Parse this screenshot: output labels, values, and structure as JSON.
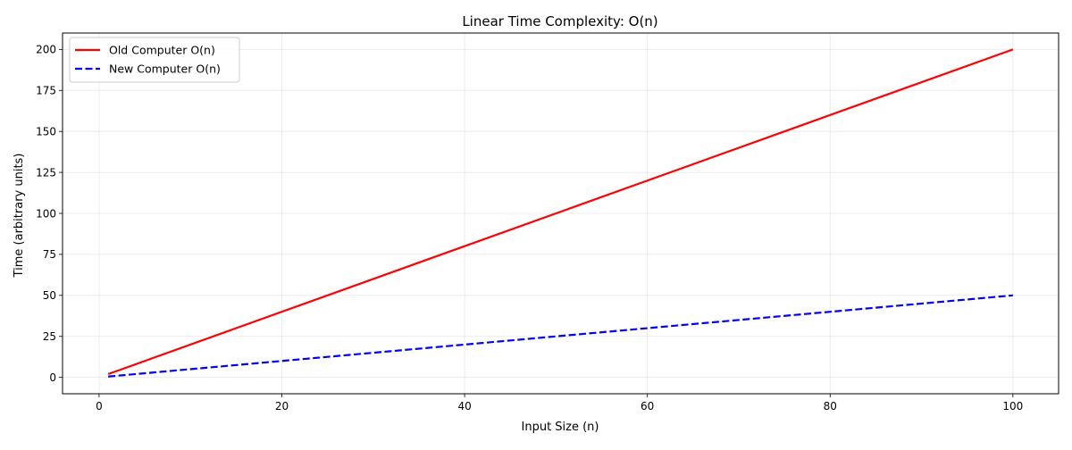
{
  "chart_data": {
    "type": "line",
    "title": "Linear Time Complexity: O(n)",
    "xlabel": "Input Size (n)",
    "ylabel": "Time (arbitrary units)",
    "xlim": [
      -4,
      105
    ],
    "ylim": [
      -10,
      210
    ],
    "xticks": [
      0,
      20,
      40,
      60,
      80,
      100
    ],
    "yticks": [
      0,
      25,
      50,
      75,
      100,
      125,
      150,
      175,
      200
    ],
    "grid": true,
    "legend_position": "upper-left",
    "series": [
      {
        "name": "Old Computer O(n)",
        "color": "#ff0000",
        "line_style": "solid",
        "x": [
          1,
          100
        ],
        "y": [
          2,
          200
        ]
      },
      {
        "name": "New Computer O(n)",
        "color": "#0000ff",
        "line_style": "dashed",
        "x": [
          1,
          100
        ],
        "y": [
          0.5,
          50
        ]
      }
    ]
  }
}
